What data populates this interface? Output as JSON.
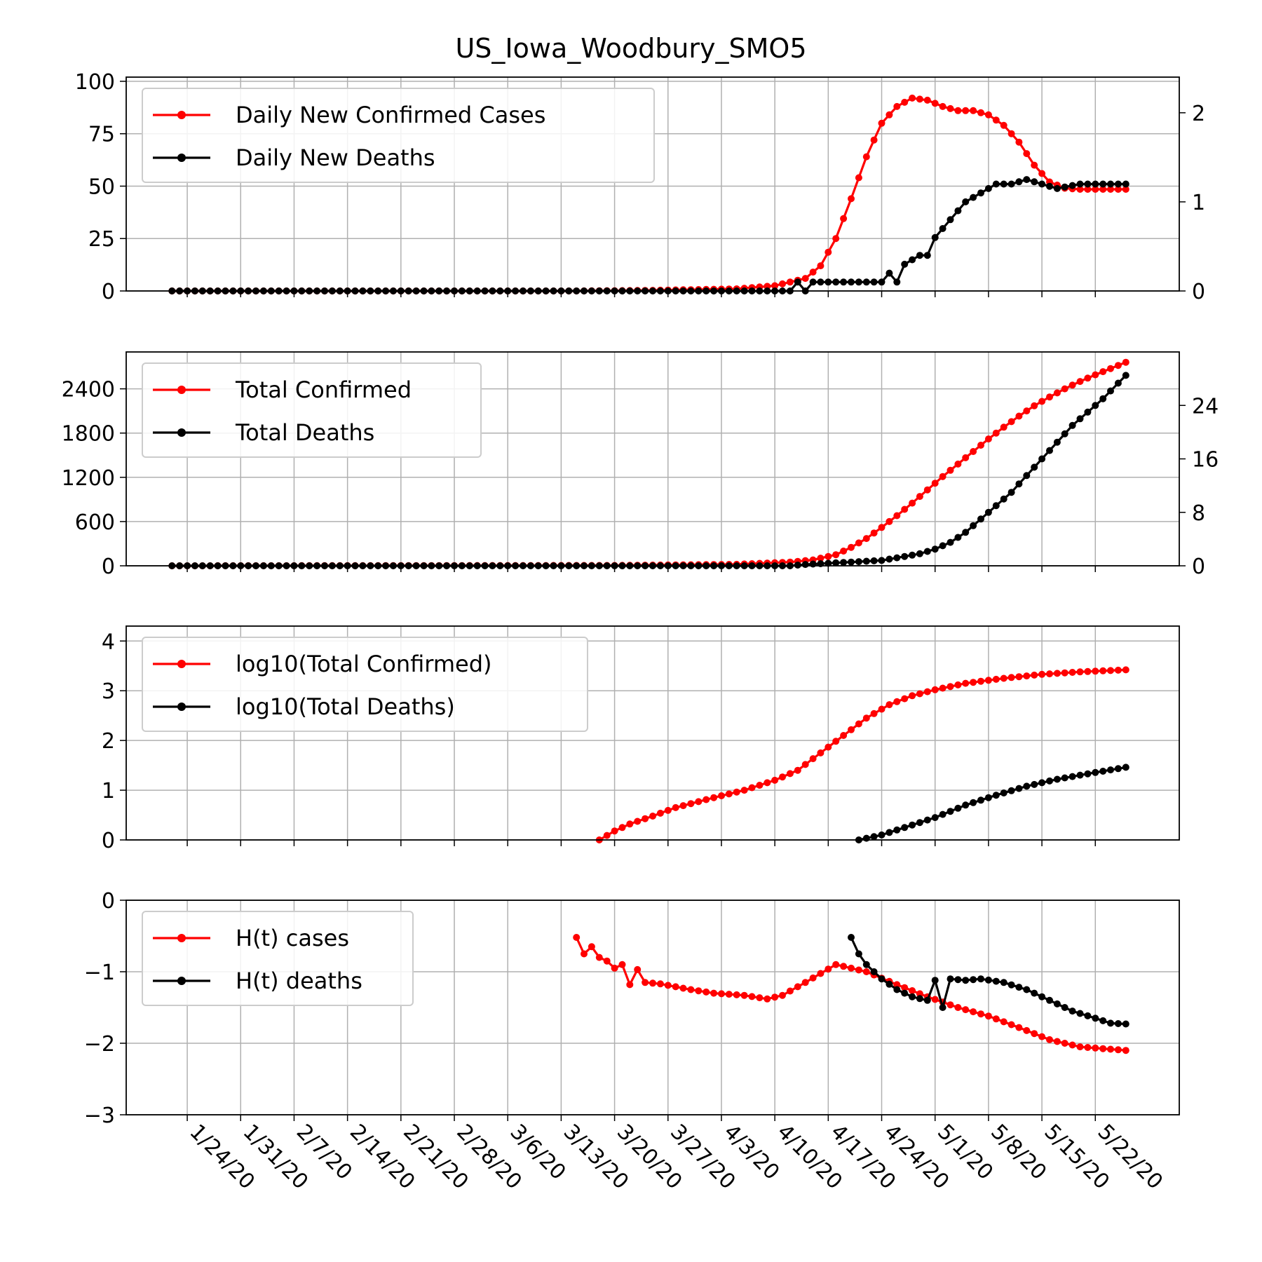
{
  "title": "US_Iowa_Woodbury_SMO5",
  "colors": {
    "cases": "#ff0000",
    "deaths": "#000000",
    "grid": "#b0b0b0"
  },
  "x_dates": [
    "1/24/20",
    "1/31/20",
    "2/7/20",
    "2/14/20",
    "2/21/20",
    "2/28/20",
    "3/6/20",
    "3/13/20",
    "3/20/20",
    "3/27/20",
    "4/3/20",
    "4/10/20",
    "4/17/20",
    "4/24/20",
    "5/1/20",
    "5/8/20",
    "5/15/20",
    "5/22/20"
  ],
  "chart_data": [
    {
      "type": "line",
      "grid": true,
      "legend_position": "top-left",
      "x": {
        "start": "1/22/20",
        "end": "5/26/20",
        "unit": "day",
        "range": [
          "1/16/20",
          "6/2/20"
        ]
      },
      "y_left": {
        "range": [
          0,
          102
        ],
        "ticks": [
          "0",
          "25",
          "50",
          "75",
          "100"
        ]
      },
      "y_right": {
        "range": [
          0,
          2.4
        ],
        "ticks": [
          "0",
          "1",
          "2"
        ]
      },
      "series": [
        {
          "name": "Daily New Confirmed Cases",
          "axis": "left",
          "color": "#ff0000",
          "keypoints": [
            [
              "1/22/20",
              0
            ],
            [
              "3/15/20",
              0
            ],
            [
              "3/25/20",
              0.3
            ],
            [
              "4/5/20",
              1
            ],
            [
              "4/10/20",
              2.5
            ],
            [
              "4/14/20",
              6
            ],
            [
              "4/16/20",
              12
            ],
            [
              "4/18/20",
              25
            ],
            [
              "4/20/20",
              44
            ],
            [
              "4/22/20",
              64
            ],
            [
              "4/24/20",
              80
            ],
            [
              "4/26/20",
              88
            ],
            [
              "4/28/20",
              92
            ],
            [
              "4/30/20",
              91
            ],
            [
              "5/2/20",
              88
            ],
            [
              "5/4/20",
              86
            ],
            [
              "5/6/20",
              86
            ],
            [
              "5/8/20",
              84
            ],
            [
              "5/10/20",
              79
            ],
            [
              "5/12/20",
              71
            ],
            [
              "5/14/20",
              60
            ],
            [
              "5/16/20",
              52
            ],
            [
              "5/18/20",
              49
            ],
            [
              "5/20/20",
              48.5
            ],
            [
              "5/26/20",
              48.5
            ]
          ]
        },
        {
          "name": "Daily New Deaths",
          "axis": "right",
          "color": "#000000",
          "keypoints": [
            [
              "1/22/20",
              0
            ],
            [
              "4/12/20",
              0
            ],
            [
              "4/13/20",
              0.1
            ],
            [
              "4/14/20",
              0
            ],
            [
              "4/15/20",
              0.1
            ],
            [
              "4/24/20",
              0.1
            ],
            [
              "4/25/20",
              0.2
            ],
            [
              "4/26/20",
              0.1
            ],
            [
              "4/27/20",
              0.3
            ],
            [
              "4/29/20",
              0.4
            ],
            [
              "4/30/20",
              0.4
            ],
            [
              "5/1/20",
              0.6
            ],
            [
              "5/3/20",
              0.8
            ],
            [
              "5/5/20",
              1.0
            ],
            [
              "5/7/20",
              1.1
            ],
            [
              "5/9/20",
              1.2
            ],
            [
              "5/11/20",
              1.2
            ],
            [
              "5/13/20",
              1.25
            ],
            [
              "5/15/20",
              1.2
            ],
            [
              "5/17/20",
              1.15
            ],
            [
              "5/20/20",
              1.2
            ],
            [
              "5/26/20",
              1.2
            ]
          ]
        }
      ]
    },
    {
      "type": "line",
      "grid": true,
      "legend_position": "top-left",
      "x": {
        "start": "1/22/20",
        "end": "5/26/20",
        "unit": "day",
        "range": [
          "1/16/20",
          "6/2/20"
        ]
      },
      "y_left": {
        "range": [
          0,
          2900
        ],
        "ticks": [
          "0",
          "600",
          "1200",
          "1800",
          "2400"
        ]
      },
      "y_right": {
        "range": [
          0,
          32
        ],
        "ticks": [
          "0",
          "8",
          "16",
          "24"
        ]
      },
      "series": [
        {
          "name": "Total Confirmed",
          "axis": "left",
          "color": "#ff0000",
          "keypoints": [
            [
              "1/22/20",
              0
            ],
            [
              "3/20/20",
              5
            ],
            [
              "4/5/20",
              20
            ],
            [
              "4/12/20",
              50
            ],
            [
              "4/15/20",
              80
            ],
            [
              "4/18/20",
              150
            ],
            [
              "4/20/20",
              250
            ],
            [
              "4/22/20",
              370
            ],
            [
              "4/24/20",
              520
            ],
            [
              "4/26/20",
              680
            ],
            [
              "4/28/20",
              850
            ],
            [
              "4/30/20",
              1030
            ],
            [
              "5/2/20",
              1210
            ],
            [
              "5/4/20",
              1380
            ],
            [
              "5/6/20",
              1550
            ],
            [
              "5/8/20",
              1720
            ],
            [
              "5/10/20",
              1880
            ],
            [
              "5/12/20",
              2030
            ],
            [
              "5/14/20",
              2170
            ],
            [
              "5/16/20",
              2290
            ],
            [
              "5/18/20",
              2400
            ],
            [
              "5/20/20",
              2500
            ],
            [
              "5/22/20",
              2590
            ],
            [
              "5/26/20",
              2760
            ]
          ]
        },
        {
          "name": "Total Deaths",
          "axis": "right",
          "color": "#000000",
          "keypoints": [
            [
              "1/22/20",
              0
            ],
            [
              "4/12/20",
              0
            ],
            [
              "4/14/20",
              0.2
            ],
            [
              "4/24/20",
              0.8
            ],
            [
              "4/26/20",
              1.2
            ],
            [
              "4/29/20",
              1.8
            ],
            [
              "5/1/20",
              2.5
            ],
            [
              "5/3/20",
              3.5
            ],
            [
              "5/5/20",
              5
            ],
            [
              "5/7/20",
              7
            ],
            [
              "5/9/20",
              9
            ],
            [
              "5/11/20",
              11
            ],
            [
              "5/13/20",
              13.5
            ],
            [
              "5/15/20",
              16
            ],
            [
              "5/17/20",
              18.5
            ],
            [
              "5/19/20",
              21
            ],
            [
              "5/21/20",
              23
            ],
            [
              "5/23/20",
              25
            ],
            [
              "5/26/20",
              28.5
            ]
          ]
        }
      ]
    },
    {
      "type": "line",
      "grid": true,
      "legend_position": "top-left",
      "x": {
        "start": "1/22/20",
        "end": "5/26/20",
        "unit": "day",
        "range": [
          "1/16/20",
          "6/2/20"
        ]
      },
      "y_left": {
        "range": [
          0,
          4.3
        ],
        "ticks": [
          "0",
          "1",
          "2",
          "3",
          "4"
        ]
      },
      "series": [
        {
          "name": "log10(Total Confirmed)",
          "axis": "left",
          "color": "#ff0000",
          "keypoints": [
            [
              "3/18/20",
              0
            ],
            [
              "3/20/20",
              0.18
            ],
            [
              "3/22/20",
              0.32
            ],
            [
              "3/25/20",
              0.48
            ],
            [
              "3/28/20",
              0.65
            ],
            [
              "4/2/20",
              0.85
            ],
            [
              "4/6/20",
              1.0
            ],
            [
              "4/10/20",
              1.2
            ],
            [
              "4/13/20",
              1.4
            ],
            [
              "4/16/20",
              1.75
            ],
            [
              "4/19/20",
              2.1
            ],
            [
              "4/22/20",
              2.45
            ],
            [
              "4/25/20",
              2.72
            ],
            [
              "4/28/20",
              2.9
            ],
            [
              "5/1/20",
              3.02
            ],
            [
              "5/5/20",
              3.15
            ],
            [
              "5/10/20",
              3.25
            ],
            [
              "5/15/20",
              3.33
            ],
            [
              "5/20/20",
              3.38
            ],
            [
              "5/26/20",
              3.42
            ]
          ]
        },
        {
          "name": "log10(Total Deaths)",
          "axis": "left",
          "color": "#000000",
          "keypoints": [
            [
              "4/21/20",
              0
            ],
            [
              "4/24/20",
              0.1
            ],
            [
              "4/27/20",
              0.25
            ],
            [
              "5/1/20",
              0.45
            ],
            [
              "5/5/20",
              0.7
            ],
            [
              "5/9/20",
              0.9
            ],
            [
              "5/13/20",
              1.08
            ],
            [
              "5/17/20",
              1.22
            ],
            [
              "5/21/20",
              1.33
            ],
            [
              "5/26/20",
              1.46
            ]
          ]
        }
      ]
    },
    {
      "type": "line",
      "grid": true,
      "legend_position": "top-left",
      "x": {
        "start": "1/22/20",
        "end": "5/26/20",
        "unit": "day",
        "range": [
          "1/16/20",
          "6/2/20"
        ]
      },
      "y_left": {
        "range": [
          -3,
          0
        ],
        "ticks": [
          "0",
          "−1",
          "−2",
          "−3"
        ]
      },
      "series": [
        {
          "name": "H(t) cases",
          "axis": "left",
          "color": "#ff0000",
          "keypoints": [
            [
              "3/15/20",
              -0.52
            ],
            [
              "3/16/20",
              -0.75
            ],
            [
              "3/17/20",
              -0.65
            ],
            [
              "3/18/20",
              -0.8
            ],
            [
              "3/19/20",
              -0.85
            ],
            [
              "3/20/20",
              -0.95
            ],
            [
              "3/21/20",
              -0.9
            ],
            [
              "3/22/20",
              -1.18
            ],
            [
              "3/23/20",
              -0.97
            ],
            [
              "3/24/20",
              -1.15
            ],
            [
              "3/26/20",
              -1.17
            ],
            [
              "3/30/20",
              -1.25
            ],
            [
              "4/2/20",
              -1.3
            ],
            [
              "4/6/20",
              -1.33
            ],
            [
              "4/9/20",
              -1.38
            ],
            [
              "4/11/20",
              -1.33
            ],
            [
              "4/14/20",
              -1.15
            ],
            [
              "4/18/20",
              -0.9
            ],
            [
              "4/22/20",
              -1.0
            ],
            [
              "4/26/20",
              -1.18
            ],
            [
              "4/30/20",
              -1.35
            ],
            [
              "5/4/20",
              -1.5
            ],
            [
              "5/8/20",
              -1.62
            ],
            [
              "5/12/20",
              -1.78
            ],
            [
              "5/16/20",
              -1.95
            ],
            [
              "5/20/20",
              -2.05
            ],
            [
              "5/26/20",
              -2.1
            ]
          ]
        },
        {
          "name": "H(t) deaths",
          "axis": "left",
          "color": "#000000",
          "keypoints": [
            [
              "4/20/20",
              -0.52
            ],
            [
              "4/21/20",
              -0.75
            ],
            [
              "4/22/20",
              -0.9
            ],
            [
              "4/24/20",
              -1.1
            ],
            [
              "4/26/20",
              -1.25
            ],
            [
              "4/28/20",
              -1.35
            ],
            [
              "4/30/20",
              -1.4
            ],
            [
              "5/1/20",
              -1.12
            ],
            [
              "5/2/20",
              -1.5
            ],
            [
              "5/3/20",
              -1.1
            ],
            [
              "5/5/20",
              -1.12
            ],
            [
              "5/7/20",
              -1.1
            ],
            [
              "5/10/20",
              -1.15
            ],
            [
              "5/13/20",
              -1.25
            ],
            [
              "5/16/20",
              -1.4
            ],
            [
              "5/19/20",
              -1.55
            ],
            [
              "5/22/20",
              -1.65
            ],
            [
              "5/24/20",
              -1.72
            ],
            [
              "5/26/20",
              -1.73
            ]
          ]
        }
      ]
    }
  ]
}
